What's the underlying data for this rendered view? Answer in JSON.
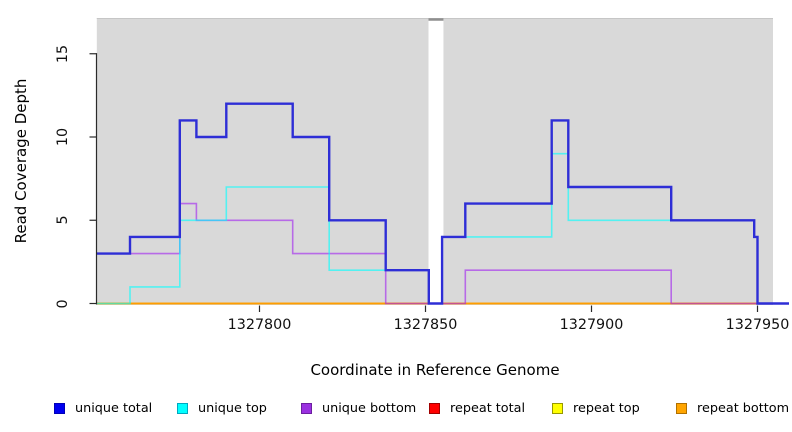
{
  "figure": {
    "xlabel": "Coordinate in Reference Genome",
    "ylabel": "Read Coverage Depth"
  },
  "axes": {
    "x": {
      "tick_labels": [
        "1327800",
        "1327850",
        "1327900",
        "1327950"
      ],
      "tick_values": [
        1327800,
        1327850,
        1327900,
        1327950
      ]
    },
    "y": {
      "tick_labels": [
        "0",
        "5",
        "10",
        "15"
      ],
      "tick_values": [
        0,
        5,
        10,
        15
      ]
    }
  },
  "legend": {
    "items": [
      {
        "label": "unique total",
        "fill": "#0000f0",
        "border": "#0000b8"
      },
      {
        "label": "unique top",
        "fill": "#00ffff",
        "border": "#00a8c0"
      },
      {
        "label": "unique bottom",
        "fill": "#9a30e0",
        "border": "#6c1fa0"
      },
      {
        "label": "repeat total",
        "fill": "#ff0000",
        "border": "#a00000"
      },
      {
        "label": "repeat top",
        "fill": "#ffff00",
        "border": "#989800"
      },
      {
        "label": "repeat bottom",
        "fill": "#ffa500",
        "border": "#b07000"
      }
    ]
  },
  "chart_data": {
    "type": "line",
    "subtype": "step-coverage-plot",
    "title": "",
    "xlabel": "Coordinate in Reference Genome",
    "ylabel": "Read Coverage Depth",
    "xlim": [
      1327751,
      1327955
    ],
    "ylim": [
      0,
      17.2
    ],
    "x_ticks": [
      1327800,
      1327850,
      1327900,
      1327950
    ],
    "y_ticks": [
      0,
      5,
      10,
      15
    ],
    "grid": false,
    "legend_position": "bottom",
    "background": "#d9d9d9",
    "gap_band": {
      "x_start": 1327850.9,
      "x_end": 1327855.4,
      "color": "#ffffff",
      "cap_color": "#8f8f8f"
    },
    "x_end_of_lines": 1327959.5,
    "draw_order_note": "series listed bottom-to-top draw order; legend order is in legend.items",
    "series": [
      {
        "name": "repeat total",
        "color": "#e60000",
        "width": 1.4,
        "opacity": 1,
        "points": [
          [
            1327751,
            0
          ]
        ]
      },
      {
        "name": "repeat top",
        "color": "#ffff00",
        "width": 1.4,
        "opacity": 1,
        "points": [
          [
            1327751,
            0
          ]
        ]
      },
      {
        "name": "repeat bottom",
        "color": "#ff9d00",
        "width": 1.7,
        "opacity": 1,
        "points": [
          [
            1327751,
            0
          ]
        ]
      },
      {
        "name": "unique bottom",
        "color": "#a020f0",
        "width": 1.6,
        "opacity": 0.6,
        "points": [
          [
            1327751,
            3
          ],
          [
            1327776,
            6
          ],
          [
            1327781,
            5
          ],
          [
            1327810,
            3
          ],
          [
            1327838,
            0
          ],
          [
            1327862,
            2
          ],
          [
            1327924,
            0
          ]
        ]
      },
      {
        "name": "unique top",
        "color": "#00ffff",
        "width": 1.6,
        "opacity": 0.62,
        "points": [
          [
            1327751,
            0
          ],
          [
            1327761,
            1
          ],
          [
            1327776,
            5
          ],
          [
            1327790,
            7
          ],
          [
            1327821,
            2
          ],
          [
            1327851,
            0
          ],
          [
            1327855,
            4
          ],
          [
            1327888,
            9
          ],
          [
            1327893,
            5
          ],
          [
            1327949,
            4
          ],
          [
            1327950,
            0
          ]
        ]
      },
      {
        "name": "unique total",
        "color": "#2e2ed6",
        "width": 2.4,
        "opacity": 1,
        "points": [
          [
            1327751,
            3
          ],
          [
            1327761,
            4
          ],
          [
            1327776,
            11
          ],
          [
            1327781,
            10
          ],
          [
            1327790,
            12
          ],
          [
            1327810,
            10
          ],
          [
            1327821,
            5
          ],
          [
            1327838,
            2
          ],
          [
            1327851,
            0
          ],
          [
            1327855,
            4
          ],
          [
            1327862,
            6
          ],
          [
            1327888,
            11
          ],
          [
            1327893,
            7
          ],
          [
            1327924,
            5
          ],
          [
            1327949,
            4
          ],
          [
            1327950,
            0
          ]
        ]
      }
    ]
  }
}
